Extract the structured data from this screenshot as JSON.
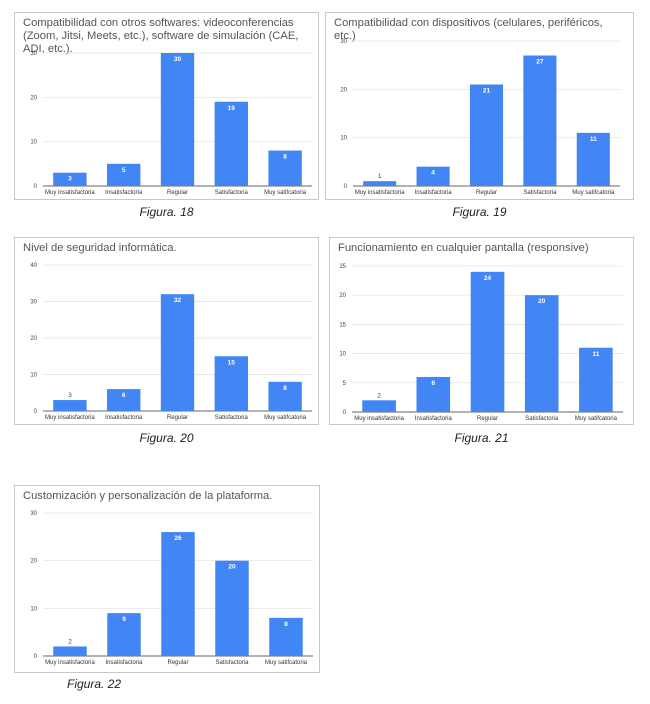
{
  "chart_data": [
    {
      "type": "bar",
      "title": "Compatibilidad con otros softwares: videoconferencias (Zoom, Jitsi, Meets, etc.), software de simulación (CAE, ADI, etc.).",
      "categories": [
        "Muy insatisfactoria",
        "Insatisfactoria",
        "Regular",
        "Satisfactoria",
        "Muy satifcatoria"
      ],
      "values": [
        3,
        5,
        30,
        19,
        8
      ],
      "ylim": [
        0,
        30
      ],
      "yticks": [
        0,
        10,
        20,
        30
      ],
      "xlabel": "",
      "ylabel": "",
      "grid": true,
      "bar_color": "#4285f4",
      "caption": "Figura. 18"
    },
    {
      "type": "bar",
      "title": "Compatibilidad con dispositivos (celulares, periféricos, etc.)",
      "categories": [
        "Muy insatisfactoria",
        "Insatisfactoria",
        "Regular",
        "Satisfactoria",
        "Muy satifcatoria"
      ],
      "values": [
        1,
        4,
        21,
        27,
        11
      ],
      "ylim": [
        0,
        30
      ],
      "yticks": [
        0,
        10,
        20,
        30
      ],
      "xlabel": "",
      "ylabel": "",
      "grid": true,
      "bar_color": "#4285f4",
      "caption": "Figura. 19"
    },
    {
      "type": "bar",
      "title": "Nivel de seguridad informática.",
      "categories": [
        "Muy insatisfactoria",
        "Insatisfactoria",
        "Regular",
        "Satisfactoria",
        "Muy satifcatoria"
      ],
      "values": [
        3,
        6,
        32,
        15,
        8
      ],
      "ylim": [
        0,
        40
      ],
      "yticks": [
        0,
        10,
        20,
        30,
        40
      ],
      "xlabel": "",
      "ylabel": "",
      "grid": true,
      "bar_color": "#4285f4",
      "caption": "Figura. 20"
    },
    {
      "type": "bar",
      "title": "Funcionamiento en cualquier pantalla (responsive)",
      "categories": [
        "Muy insatisfactoria",
        "Insatisfactoria",
        "Regular",
        "Satisfactoria",
        "Muy satifcatoria"
      ],
      "values": [
        2,
        6,
        24,
        20,
        11
      ],
      "ylim": [
        0,
        25
      ],
      "yticks": [
        0,
        5,
        10,
        15,
        20,
        25
      ],
      "xlabel": "",
      "ylabel": "",
      "grid": true,
      "bar_color": "#4285f4",
      "caption": "Figura. 21"
    },
    {
      "type": "bar",
      "title": "Customización y personalización de la plataforma.",
      "categories": [
        "Muy insatisfactoria",
        "Insatisfactoria",
        "Regular",
        "Satisfactoria",
        "Muy satifcatoria"
      ],
      "values": [
        2,
        9,
        26,
        20,
        8
      ],
      "ylim": [
        0,
        30
      ],
      "yticks": [
        0,
        10,
        20,
        30
      ],
      "xlabel": "",
      "ylabel": "",
      "grid": true,
      "bar_color": "#4285f4",
      "caption": "Figura. 22"
    }
  ]
}
